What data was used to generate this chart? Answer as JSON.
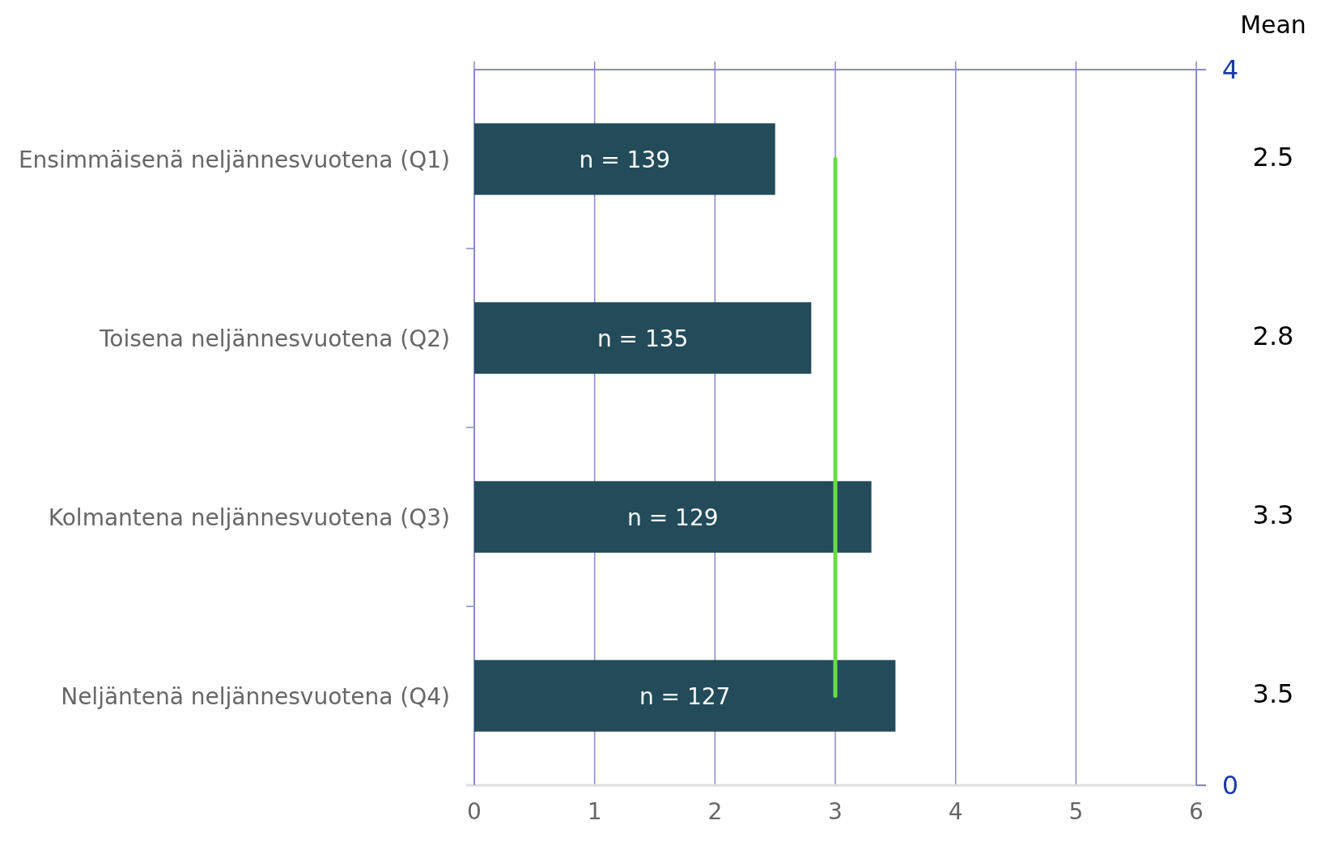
{
  "chart_data": {
    "type": "bar",
    "orientation": "horizontal",
    "categories": [
      "Ensimmäisenä neljännesvuotena (Q1)",
      "Toisena neljännesvuotena (Q2)",
      "Kolmantena neljännesvuotena (Q3)",
      "Neljäntenä neljännesvuotena (Q4)"
    ],
    "values": [
      2.5,
      2.8,
      3.3,
      3.5
    ],
    "value_labels": [
      "2.5",
      "2.8",
      "3.3",
      "3.5"
    ],
    "color": "#234b5a",
    "xlim": [
      0,
      6
    ],
    "xticks": [
      0,
      1,
      2,
      3,
      4,
      5,
      6
    ],
    "y2lim": [
      0,
      4
    ],
    "y2ticks": [
      0,
      4
    ],
    "grid": "x",
    "series": [
      {
        "type": "line",
        "values": [
          3,
          3,
          3,
          3
        ],
        "color": "#66dd44"
      }
    ],
    "annotations": [
      "Mean",
      "n = 139",
      "n = 135",
      "n = 129",
      "n = 127"
    ]
  }
}
